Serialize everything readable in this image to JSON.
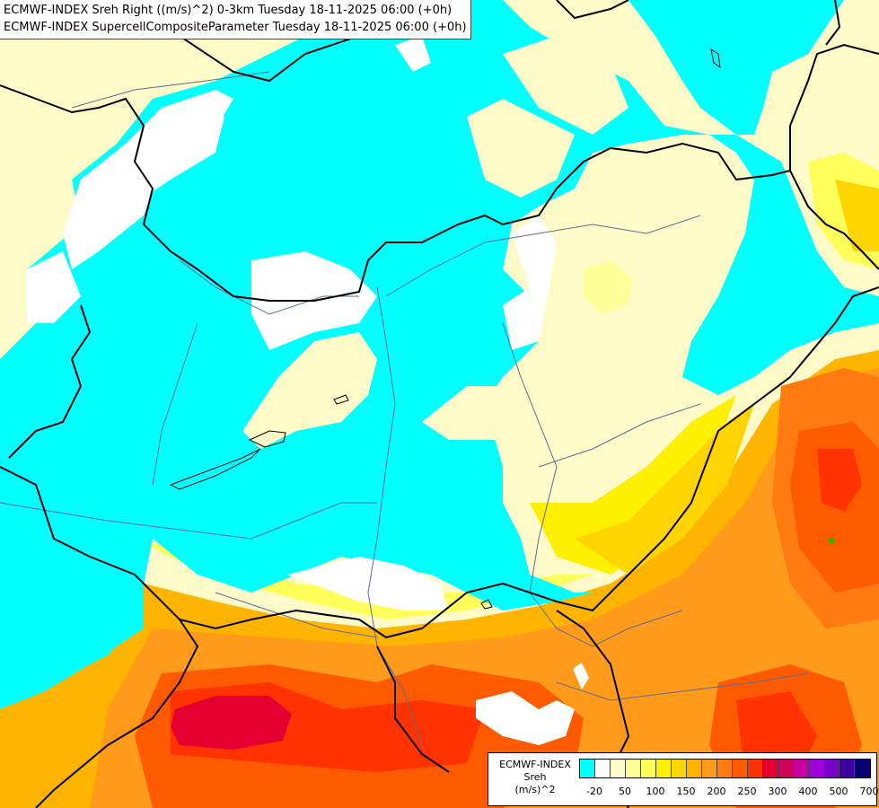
{
  "title": {
    "line1": "ECMWF-INDEX Sreh Right ((m/s)^2) 0-3km Tuesday 18-11-2025 06:00 (+0h)",
    "line2": "ECMWF-INDEX SupercellCompositeParameter Tuesday 18-11-2025 06:00 (+0h)"
  },
  "legend": {
    "title_lines": [
      "ECMWF-INDEX",
      "Sreh",
      "(m/s)^2"
    ],
    "colors": [
      "#00ffff",
      "#ffffff",
      "#fffbc8",
      "#ffff9a",
      "#ffff5a",
      "#ffef00",
      "#ffd400",
      "#ffb400",
      "#ff9a1a",
      "#ff7a10",
      "#ff5a00",
      "#ff3200",
      "#e60032",
      "#d2005a",
      "#c800a0",
      "#a000dc",
      "#7800c8",
      "#3c00a0",
      "#0a0070"
    ],
    "ticks": [
      {
        "label": "-20",
        "index": 1
      },
      {
        "label": "50",
        "index": 3
      },
      {
        "label": "100",
        "index": 5
      },
      {
        "label": "150",
        "index": 7
      },
      {
        "label": "200",
        "index": 9
      },
      {
        "label": "250",
        "index": 11
      },
      {
        "label": "300",
        "index": 13
      },
      {
        "label": "400",
        "index": 15
      },
      {
        "label": "500",
        "index": 17
      },
      {
        "label": "700",
        "index": 19
      }
    ]
  },
  "map_colors": {
    "cyan": "#00ffff",
    "white": "#ffffff",
    "pale_yellow": "#fffbc8",
    "light_yellow": "#ffff9a",
    "yellow": "#ffff5a",
    "gold": "#ffd400",
    "light_orange": "#ffb400",
    "orange": "#ff9a1a",
    "dark_orange": "#ff7a10",
    "red_orange": "#ff5a00",
    "red": "#ff3200",
    "crimson": "#e60032",
    "marker_green": "#00c800",
    "border": "#000000",
    "river": "#5a6e96"
  }
}
